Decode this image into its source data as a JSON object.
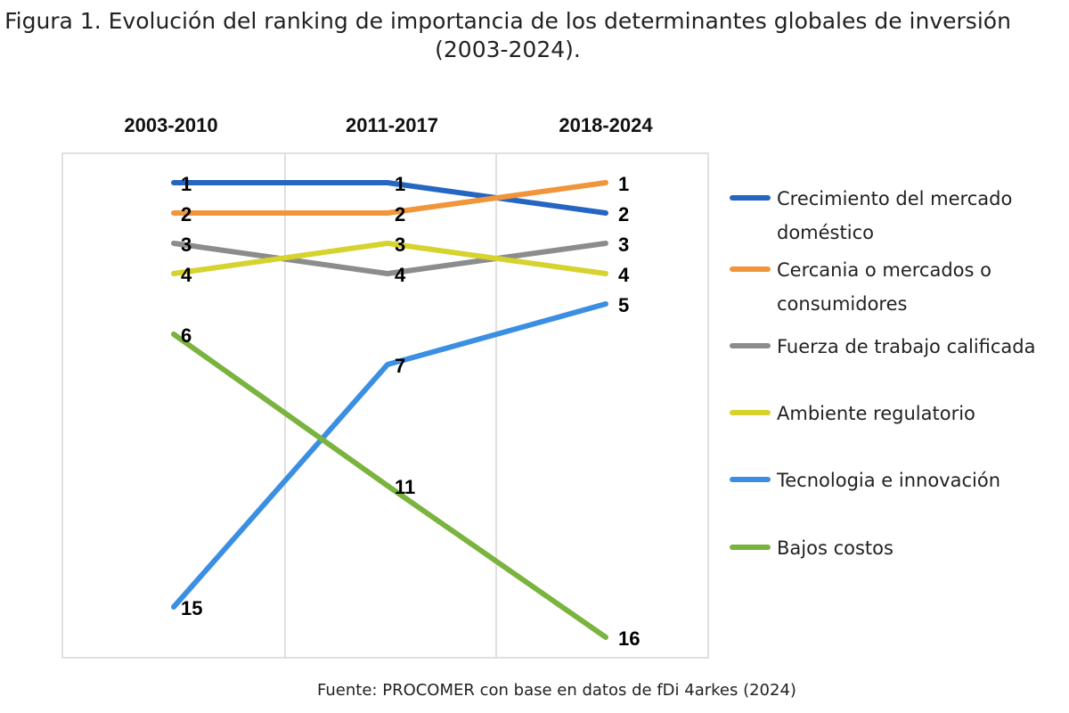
{
  "chart_data": {
    "type": "line",
    "title": "Figura 1. Evolución del ranking de importancia de los determinantes globales de inversión (2003-2024).",
    "source": "Fuente: PROCOMER con base en datos de fDi 4arkes (2024)",
    "categories": [
      "2003-2010",
      "2011-2017",
      "2018-2024"
    ],
    "y_inverted": true,
    "ylim": [
      1,
      16
    ],
    "grid": "vertical",
    "legend_position": "right",
    "series": [
      {
        "name": "Crecimiento del mercado doméstico",
        "legend_lines": [
          "Crecimiento del mercado",
          "doméstico"
        ],
        "values": [
          1,
          1,
          2
        ],
        "color": "#2566c2"
      },
      {
        "name": "Cercania o mercados o consumidores",
        "legend_lines": [
          "Cercania o mercados o",
          "consumidores"
        ],
        "values": [
          2,
          2,
          1
        ],
        "color": "#f0953a"
      },
      {
        "name": "Fuerza de trabajo calificada",
        "legend_lines": [
          "Fuerza de trabajo calificada"
        ],
        "values": [
          3,
          4,
          3
        ],
        "color": "#8c8c8c"
      },
      {
        "name": "Ambiente regulatorio",
        "legend_lines": [
          "Ambiente regulatorio"
        ],
        "values": [
          4,
          3,
          4
        ],
        "color": "#d6d22e"
      },
      {
        "name": "Tecnologia e innovación",
        "legend_lines": [
          "Tecnologia e innovación"
        ],
        "values": [
          15,
          7,
          5
        ],
        "color": "#3b8fe2"
      },
      {
        "name": "Bajos costos",
        "legend_lines": [
          "Bajos costos"
        ],
        "values": [
          6,
          11,
          16
        ],
        "color": "#7ab33e"
      }
    ]
  }
}
